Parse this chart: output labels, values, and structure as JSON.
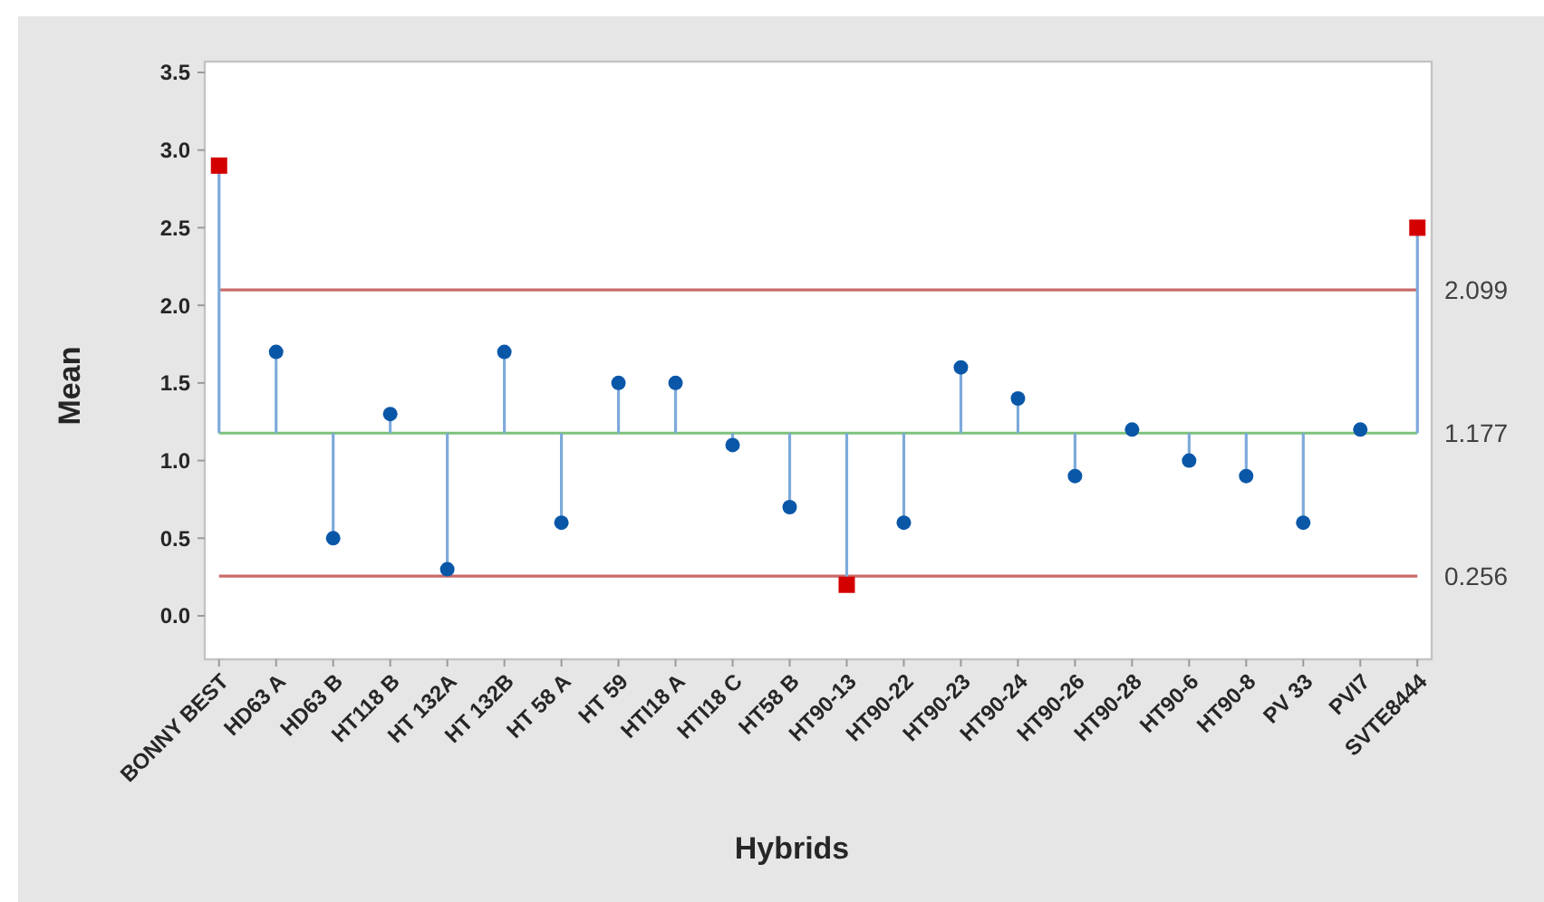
{
  "chart_data": {
    "type": "lollipop",
    "xlabel": "Hybrids",
    "ylabel": "Mean",
    "categories": [
      "BONNY BEST",
      "HD63 A",
      "HD63 B",
      "HT118 B",
      "HT 132A",
      "HT 132B",
      "HT 58 A",
      "HT 59",
      "HTI18 A",
      "HTI18 C",
      "HT58 B",
      "HT90-13",
      "HT90-22",
      "HT90-23",
      "HT90-24",
      "HT90-26",
      "HT90-28",
      "HT90-6",
      "HT90-8",
      "PV 33",
      "PVI7",
      "SVTE8444"
    ],
    "series": [
      {
        "color": "#0a57a8",
        "marker": "circle",
        "values": [
          null,
          1.7,
          0.5,
          1.3,
          0.3,
          1.7,
          0.6,
          1.5,
          1.5,
          1.1,
          0.7,
          null,
          0.6,
          1.6,
          1.4,
          0.9,
          1.2,
          1.0,
          0.9,
          0.6,
          1.2,
          null
        ]
      },
      {
        "color": "#d40000",
        "marker": "square",
        "values": [
          2.9,
          null,
          null,
          null,
          null,
          null,
          null,
          null,
          null,
          null,
          null,
          0.2,
          null,
          null,
          null,
          null,
          null,
          null,
          null,
          null,
          null,
          2.5
        ]
      }
    ],
    "ylim": [
      -0.28,
      3.57
    ],
    "yticks": [
      {
        "value": 0,
        "label": "0.0"
      },
      {
        "value": 0.5,
        "label": "0.5"
      },
      {
        "value": 1,
        "label": "1.0"
      },
      {
        "value": 1.5,
        "label": "1.5"
      },
      {
        "value": 2,
        "label": "2.0"
      },
      {
        "value": 2.5,
        "label": "2.5"
      },
      {
        "value": 3,
        "label": "3.0"
      },
      {
        "value": 3.5,
        "label": "3.5"
      }
    ],
    "ref_lines": [
      {
        "axis": "y",
        "value": 2.099,
        "label": "2.099",
        "color": "#c96a6a"
      },
      {
        "axis": "y",
        "value": 1.177,
        "label": "1.177",
        "color": "#7cc27c"
      },
      {
        "axis": "y",
        "value": 0.256,
        "label": "0.256",
        "color": "#c96a6a"
      }
    ]
  }
}
